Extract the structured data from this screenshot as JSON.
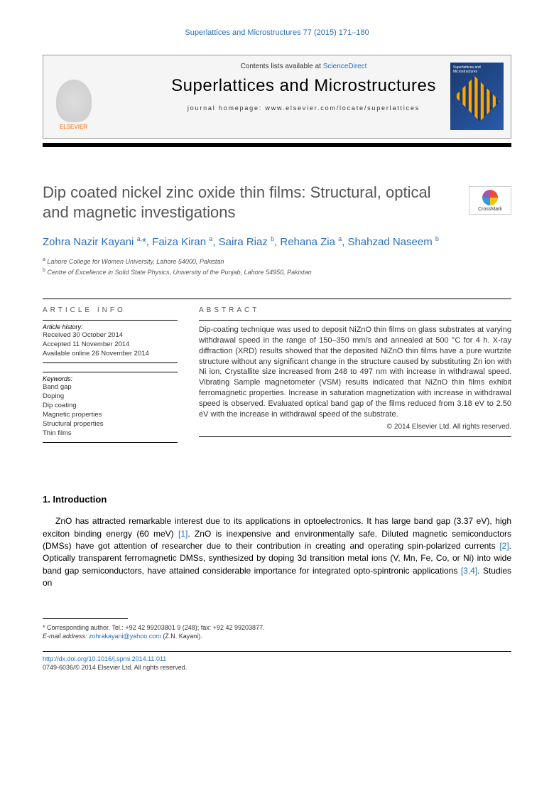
{
  "journal_ref": "Superlattices and Microstructures 77 (2015) 171–180",
  "header": {
    "contents_prefix": "Contents lists available at ",
    "contents_link": "ScienceDirect",
    "journal_name": "Superlattices and Microstructures",
    "homepage_prefix": "journal homepage: ",
    "homepage_url": "www.elsevier.com/locate/superlattices",
    "publisher_logo_text": "ELSEVIER",
    "cover_title": "Superlattices and Microstructures"
  },
  "crossmark_label": "CrossMark",
  "title": "Dip coated nickel zinc oxide thin films: Structural, optical and magnetic investigations",
  "authors_html": "Zohra Nazir Kayani <sup>a,</sup>*, Faiza Kiran <sup>a</sup>, Saira Riaz <sup>b</sup>, Rehana Zia <sup>a</sup>, Shahzad Naseem <sup>b</sup>",
  "affiliations": [
    {
      "sup": "a",
      "text": "Lahore College for Women University, Lahore 54000, Pakistan"
    },
    {
      "sup": "b",
      "text": "Centre of Excellence in Solid State Physics, University of the Punjab, Lahore 54950, Pakistan"
    }
  ],
  "article_info": {
    "heading": "ARTICLE INFO",
    "history_label": "Article history:",
    "history": [
      "Received 30 October 2014",
      "Accepted 11 November 2014",
      "Available online 26 November 2014"
    ],
    "keywords_label": "Keywords:",
    "keywords": [
      "Band gap",
      "Doping",
      "Dip coating",
      "Magnetic properties",
      "Structural properties",
      "Thin films"
    ]
  },
  "abstract": {
    "heading": "ABSTRACT",
    "text": "Dip-coating technique was used to deposit NiZnO thin films on glass substrates at varying withdrawal speed in the range of 150–350 mm/s and annealed at 500 °C for 4 h. X-ray diffraction (XRD) results showed that the deposited NiZnO thin films have a pure wurtzite structure without any significant change in the structure caused by substituting Zn ion with Ni ion. Crystallite size increased from 248 to 497 nm with increase in withdrawal speed. Vibrating Sample magnetometer (VSM) results indicated that NiZnO thin films exhibit ferromagnetic properties. Increase in saturation magnetization with increase in withdrawal speed is observed. Evaluated optical band gap of the films reduced from 3.18 eV to 2.50 eV with the increase in withdrawal speed of the substrate.",
    "copyright": "© 2014 Elsevier Ltd. All rights reserved."
  },
  "section1": {
    "heading": "1. Introduction",
    "p1_pre": "ZnO has attracted remarkable interest due to its applications in optoelectronics. It has large band gap (3.37 eV), high exciton binding energy (60 meV) ",
    "ref1": "[1]",
    "p1_mid1": ". ZnO is inexpensive and environmentally safe. Diluted magnetic semiconductors (DMSs) have got attention of researcher due to their contribution in creating and operating spin-polarized currents ",
    "ref2": "[2]",
    "p1_mid2": ". Optically transparent ferromagnetic DMSs, synthesized by doping 3d transition metal ions (V, Mn, Fe, Co, or Ni) into wide band gap semiconductors, have attained considerable importance for integrated opto-spintronic applications ",
    "ref34": "[3,4]",
    "p1_post": ". Studies on"
  },
  "footnote": {
    "corr": "* Corresponding author. Tel.: +92 42 99203801 9 (248); fax: +92 42 99203877.",
    "email_label": "E-mail address: ",
    "email": "zohrakayani@yahoo.com",
    "email_person": " (Z.N. Kayani)."
  },
  "footer": {
    "doi": "http://dx.doi.org/10.1016/j.spmi.2014.11.011",
    "issn_line": "0749-6036/© 2014 Elsevier Ltd. All rights reserved."
  },
  "colors": {
    "link": "#2a6ebb",
    "title_gray": "#555555",
    "elsevier_orange": "#ff6600"
  }
}
